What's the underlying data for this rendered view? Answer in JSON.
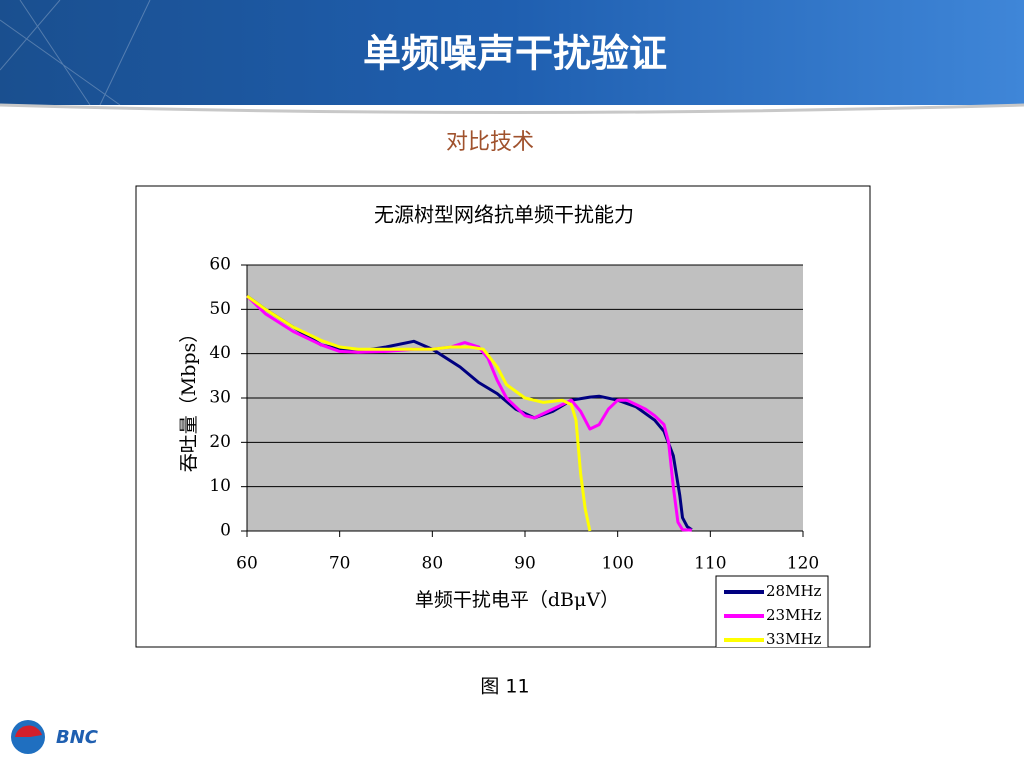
{
  "slide": {
    "title": "单频噪声干扰验证",
    "subtitle": "对比技术",
    "caption": "图 11",
    "logo": "BNC"
  },
  "chart_data": {
    "type": "line",
    "title": "无源树型网络抗单频干扰能力",
    "xlabel": "单频干扰电平（dBμV）",
    "ylabel": "吞吐量（Mbps）",
    "xlim": [
      60,
      120
    ],
    "ylim": [
      0,
      60
    ],
    "xticks": [
      60,
      70,
      80,
      90,
      100,
      110,
      120
    ],
    "yticks": [
      0,
      10,
      20,
      30,
      40,
      50,
      60
    ],
    "grid": true,
    "legend": "lower right",
    "plot_background": "#c0c0c0",
    "series": [
      {
        "name": "28MHz",
        "color": "#000080",
        "x": [
          60,
          62,
          65,
          68,
          70,
          72,
          75,
          78,
          80,
          83,
          85,
          87,
          89,
          91,
          93,
          95,
          97,
          98,
          100,
          102,
          104,
          105,
          106,
          106.7,
          107,
          107.5,
          108
        ],
        "values": [
          53,
          50,
          46,
          42,
          41,
          40.5,
          41.5,
          42.8,
          41,
          37,
          33.5,
          31,
          27.5,
          25.5,
          27,
          29.5,
          30.2,
          30.4,
          29.5,
          28,
          25,
          22.5,
          17,
          8,
          3,
          1,
          0.3
        ]
      },
      {
        "name": "23MHz",
        "color": "#ff00ff",
        "x": [
          60,
          62,
          65,
          68,
          70,
          72,
          75,
          78,
          80,
          82,
          83.5,
          85,
          86,
          87,
          88,
          90,
          91,
          93,
          95,
          96,
          97,
          98,
          99,
          100,
          101,
          103,
          104,
          105,
          105.5,
          106,
          106.5,
          107,
          108
        ],
        "values": [
          53,
          49,
          45,
          42,
          40.5,
          40.3,
          40.5,
          41,
          41,
          41.5,
          42.5,
          41.5,
          39,
          34,
          30,
          26,
          25.5,
          27.5,
          29.5,
          27,
          23,
          24,
          27.5,
          29.5,
          29.5,
          27.5,
          26,
          24,
          20,
          10,
          2,
          0.3,
          0.2
        ]
      },
      {
        "name": "33MHz",
        "color": "#ffff00",
        "x": [
          60,
          62,
          65,
          68,
          70,
          72,
          75,
          78,
          80,
          82,
          84,
          85.5,
          87,
          88,
          90,
          92,
          94,
          95,
          95.5,
          96,
          96.5,
          97
        ],
        "values": [
          53,
          50,
          46,
          43,
          41.5,
          41,
          41,
          41,
          41,
          41.5,
          41.5,
          41,
          37,
          33,
          30,
          29,
          29.5,
          28.5,
          25,
          13,
          5,
          0
        ]
      }
    ]
  }
}
